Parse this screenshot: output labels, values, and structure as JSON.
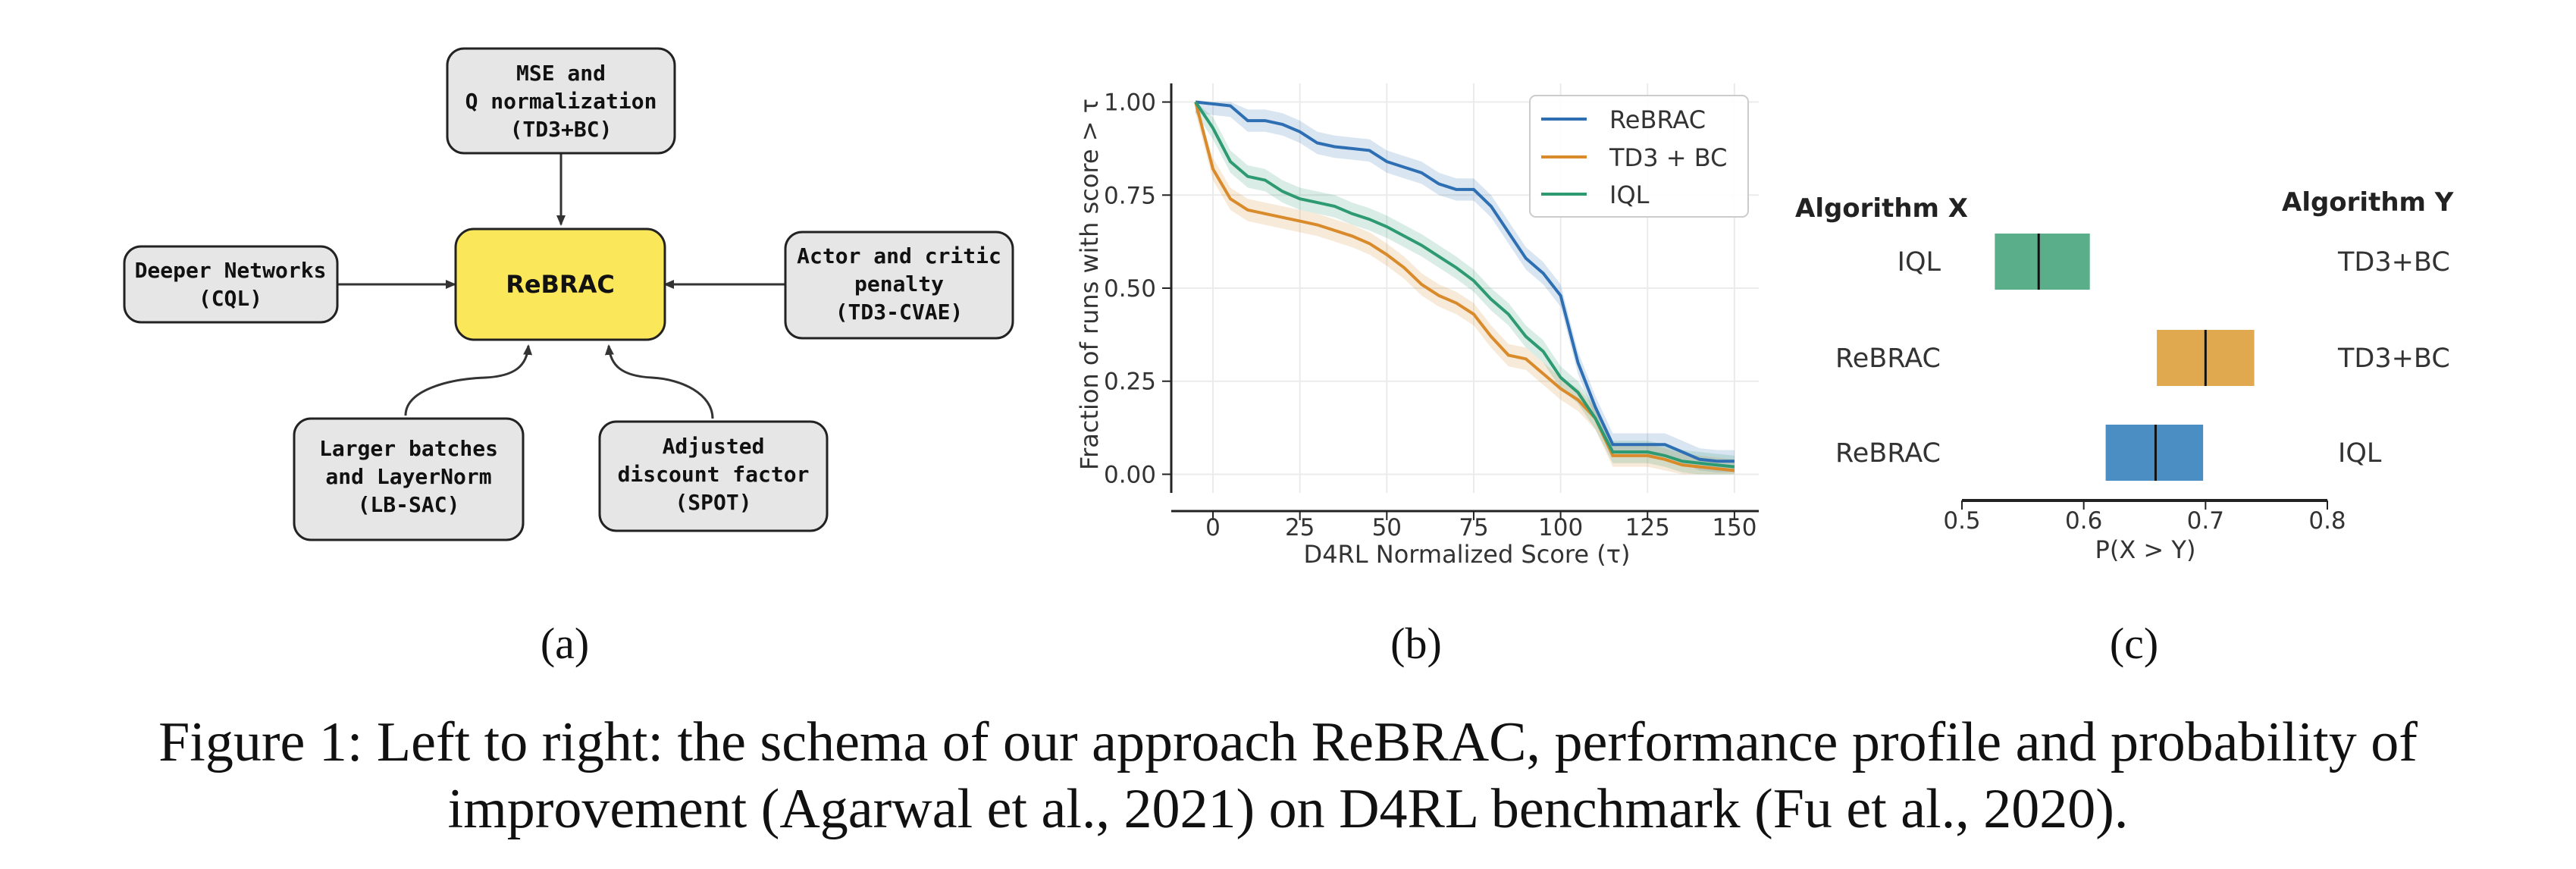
{
  "schema": {
    "center": "ReBRAC",
    "nodes": [
      {
        "id": "top",
        "lines": [
          "MSE and",
          "Q normalization",
          "(TD3+BC)"
        ]
      },
      {
        "id": "left",
        "lines": [
          "Deeper Networks",
          "(CQL)"
        ]
      },
      {
        "id": "right",
        "lines": [
          "Actor and critic",
          "penalty",
          "(TD3-CVAE)"
        ]
      },
      {
        "id": "bottom_left",
        "lines": [
          "Larger batches",
          "and LayerNorm",
          "(LB-SAC)"
        ]
      },
      {
        "id": "bottom_right",
        "lines": [
          "Adjusted",
          "discount factor",
          "(SPOT)"
        ]
      }
    ],
    "colors": {
      "center_fill": "#fbe85a",
      "node_fill": "#e6e6e6"
    }
  },
  "panel_labels": [
    "(a)",
    "(b)",
    "(c)"
  ],
  "chart_data": [
    {
      "type": "line",
      "xlabel": "D4RL Normalized Score (τ)",
      "ylabel": "Fraction of runs with score > τ",
      "xlim": [
        -12,
        157
      ],
      "ylim": [
        -0.05,
        1.05
      ],
      "xticks": [
        "0",
        "25",
        "50",
        "75",
        "100",
        "125",
        "150"
      ],
      "yticks": [
        "0.00",
        "0.25",
        "0.50",
        "0.75",
        "1.00"
      ],
      "grid": true,
      "legend": "top-right",
      "x": [
        -5,
        0,
        5,
        10,
        15,
        20,
        25,
        30,
        35,
        40,
        45,
        50,
        55,
        60,
        65,
        70,
        75,
        80,
        85,
        90,
        95,
        100,
        105,
        110,
        115,
        120,
        125,
        130,
        135,
        140,
        145,
        150
      ],
      "series": [
        {
          "name": "ReBRAC",
          "color": "#2e6fb3",
          "values": [
            1.0,
            0.995,
            0.99,
            0.95,
            0.95,
            0.94,
            0.92,
            0.89,
            0.88,
            0.875,
            0.87,
            0.84,
            0.825,
            0.81,
            0.78,
            0.765,
            0.765,
            0.72,
            0.65,
            0.58,
            0.54,
            0.48,
            0.3,
            0.18,
            0.08,
            0.08,
            0.08,
            0.08,
            0.06,
            0.04,
            0.035,
            0.035
          ],
          "band": 0.03
        },
        {
          "name": "TD3 + BC",
          "color": "#d98b2b",
          "values": [
            1.0,
            0.82,
            0.74,
            0.71,
            0.7,
            0.69,
            0.68,
            0.67,
            0.655,
            0.64,
            0.62,
            0.59,
            0.555,
            0.51,
            0.48,
            0.46,
            0.43,
            0.37,
            0.32,
            0.31,
            0.27,
            0.23,
            0.2,
            0.15,
            0.05,
            0.05,
            0.05,
            0.04,
            0.025,
            0.02,
            0.015,
            0.01
          ],
          "band": 0.03
        },
        {
          "name": "IQL",
          "color": "#2e9a72",
          "values": [
            1.0,
            0.93,
            0.84,
            0.8,
            0.79,
            0.76,
            0.74,
            0.73,
            0.72,
            0.7,
            0.685,
            0.665,
            0.64,
            0.615,
            0.585,
            0.555,
            0.52,
            0.47,
            0.43,
            0.37,
            0.33,
            0.26,
            0.22,
            0.15,
            0.06,
            0.06,
            0.06,
            0.05,
            0.035,
            0.03,
            0.025,
            0.02
          ],
          "band": 0.03
        }
      ]
    },
    {
      "type": "bar",
      "orientation": "horizontal",
      "xlabel": "P(X > Y)",
      "xlim": [
        0.5,
        0.8
      ],
      "xticks": [
        "0.5",
        "0.6",
        "0.7",
        "0.8"
      ],
      "header_x": "Algorithm X",
      "header_y": "Algorithm Y",
      "rows": [
        {
          "x": "IQL",
          "y": "TD3+BC",
          "low": 0.527,
          "high": 0.605,
          "median": 0.563,
          "color": "#5aae8a"
        },
        {
          "x": "ReBRAC",
          "y": "TD3+BC",
          "low": 0.66,
          "high": 0.74,
          "median": 0.7,
          "color": "#e0a84f"
        },
        {
          "x": "ReBRAC",
          "y": "IQL",
          "low": 0.618,
          "high": 0.698,
          "median": 0.659,
          "color": "#4a8ec3"
        }
      ]
    }
  ],
  "caption_lines": [
    "Figure 1: Left to right: the schema of our approach ReBRAC, performance profile and probability of",
    "improvement (Agarwal et al., 2021) on D4RL benchmark (Fu et al., 2020)."
  ]
}
